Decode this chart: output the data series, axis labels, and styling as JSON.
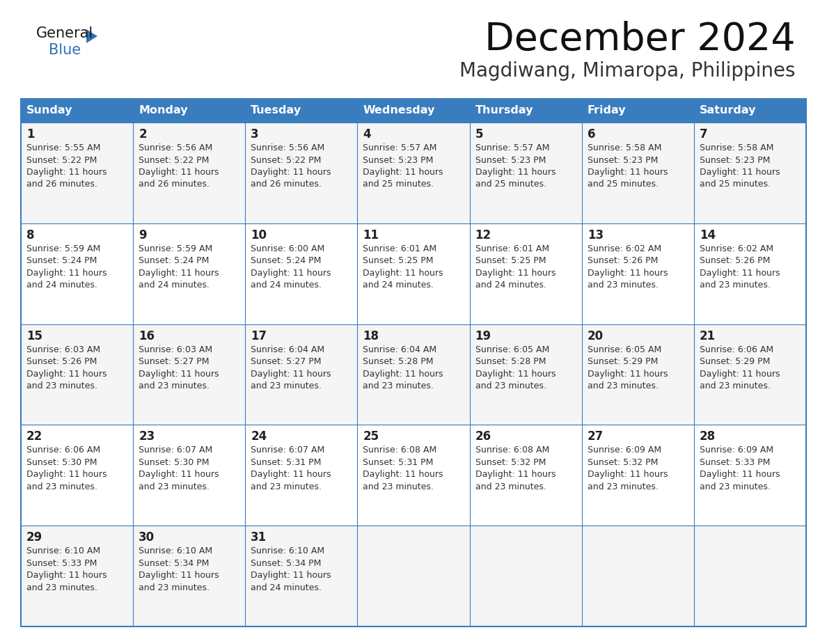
{
  "title": "December 2024",
  "subtitle": "Magdiwang, Mimaropa, Philippines",
  "days_of_week": [
    "Sunday",
    "Monday",
    "Tuesday",
    "Wednesday",
    "Thursday",
    "Friday",
    "Saturday"
  ],
  "header_bg": "#3a7dbf",
  "header_text": "#ffffff",
  "row_bg_odd": "#f5f5f5",
  "row_bg_even": "#ffffff",
  "border_color": "#3a7dbf",
  "day_num_color": "#222222",
  "text_color": "#333333",
  "title_color": "#111111",
  "subtitle_color": "#333333",
  "logo_general_color": "#1a1a1a",
  "logo_blue_color": "#2e72b8",
  "logo_triangle_color": "#2e72b8",
  "weeks": [
    [
      {
        "day": 1,
        "sunrise": "5:55 AM",
        "sunset": "5:22 PM",
        "daylight": "11 hours and 26 minutes."
      },
      {
        "day": 2,
        "sunrise": "5:56 AM",
        "sunset": "5:22 PM",
        "daylight": "11 hours and 26 minutes."
      },
      {
        "day": 3,
        "sunrise": "5:56 AM",
        "sunset": "5:22 PM",
        "daylight": "11 hours and 26 minutes."
      },
      {
        "day": 4,
        "sunrise": "5:57 AM",
        "sunset": "5:23 PM",
        "daylight": "11 hours and 25 minutes."
      },
      {
        "day": 5,
        "sunrise": "5:57 AM",
        "sunset": "5:23 PM",
        "daylight": "11 hours and 25 minutes."
      },
      {
        "day": 6,
        "sunrise": "5:58 AM",
        "sunset": "5:23 PM",
        "daylight": "11 hours and 25 minutes."
      },
      {
        "day": 7,
        "sunrise": "5:58 AM",
        "sunset": "5:23 PM",
        "daylight": "11 hours and 25 minutes."
      }
    ],
    [
      {
        "day": 8,
        "sunrise": "5:59 AM",
        "sunset": "5:24 PM",
        "daylight": "11 hours and 24 minutes."
      },
      {
        "day": 9,
        "sunrise": "5:59 AM",
        "sunset": "5:24 PM",
        "daylight": "11 hours and 24 minutes."
      },
      {
        "day": 10,
        "sunrise": "6:00 AM",
        "sunset": "5:24 PM",
        "daylight": "11 hours and 24 minutes."
      },
      {
        "day": 11,
        "sunrise": "6:01 AM",
        "sunset": "5:25 PM",
        "daylight": "11 hours and 24 minutes."
      },
      {
        "day": 12,
        "sunrise": "6:01 AM",
        "sunset": "5:25 PM",
        "daylight": "11 hours and 24 minutes."
      },
      {
        "day": 13,
        "sunrise": "6:02 AM",
        "sunset": "5:26 PM",
        "daylight": "11 hours and 23 minutes."
      },
      {
        "day": 14,
        "sunrise": "6:02 AM",
        "sunset": "5:26 PM",
        "daylight": "11 hours and 23 minutes."
      }
    ],
    [
      {
        "day": 15,
        "sunrise": "6:03 AM",
        "sunset": "5:26 PM",
        "daylight": "11 hours and 23 minutes."
      },
      {
        "day": 16,
        "sunrise": "6:03 AM",
        "sunset": "5:27 PM",
        "daylight": "11 hours and 23 minutes."
      },
      {
        "day": 17,
        "sunrise": "6:04 AM",
        "sunset": "5:27 PM",
        "daylight": "11 hours and 23 minutes."
      },
      {
        "day": 18,
        "sunrise": "6:04 AM",
        "sunset": "5:28 PM",
        "daylight": "11 hours and 23 minutes."
      },
      {
        "day": 19,
        "sunrise": "6:05 AM",
        "sunset": "5:28 PM",
        "daylight": "11 hours and 23 minutes."
      },
      {
        "day": 20,
        "sunrise": "6:05 AM",
        "sunset": "5:29 PM",
        "daylight": "11 hours and 23 minutes."
      },
      {
        "day": 21,
        "sunrise": "6:06 AM",
        "sunset": "5:29 PM",
        "daylight": "11 hours and 23 minutes."
      }
    ],
    [
      {
        "day": 22,
        "sunrise": "6:06 AM",
        "sunset": "5:30 PM",
        "daylight": "11 hours and 23 minutes."
      },
      {
        "day": 23,
        "sunrise": "6:07 AM",
        "sunset": "5:30 PM",
        "daylight": "11 hours and 23 minutes."
      },
      {
        "day": 24,
        "sunrise": "6:07 AM",
        "sunset": "5:31 PM",
        "daylight": "11 hours and 23 minutes."
      },
      {
        "day": 25,
        "sunrise": "6:08 AM",
        "sunset": "5:31 PM",
        "daylight": "11 hours and 23 minutes."
      },
      {
        "day": 26,
        "sunrise": "6:08 AM",
        "sunset": "5:32 PM",
        "daylight": "11 hours and 23 minutes."
      },
      {
        "day": 27,
        "sunrise": "6:09 AM",
        "sunset": "5:32 PM",
        "daylight": "11 hours and 23 minutes."
      },
      {
        "day": 28,
        "sunrise": "6:09 AM",
        "sunset": "5:33 PM",
        "daylight": "11 hours and 23 minutes."
      }
    ],
    [
      {
        "day": 29,
        "sunrise": "6:10 AM",
        "sunset": "5:33 PM",
        "daylight": "11 hours and 23 minutes."
      },
      {
        "day": 30,
        "sunrise": "6:10 AM",
        "sunset": "5:34 PM",
        "daylight": "11 hours and 23 minutes."
      },
      {
        "day": 31,
        "sunrise": "6:10 AM",
        "sunset": "5:34 PM",
        "daylight": "11 hours and 24 minutes."
      },
      null,
      null,
      null,
      null
    ]
  ]
}
